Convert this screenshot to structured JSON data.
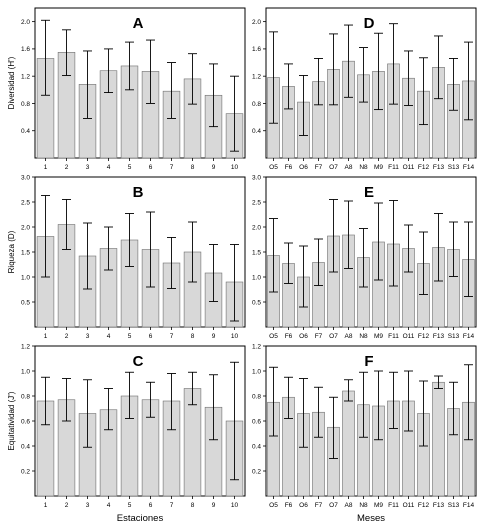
{
  "chart_data": [
    {
      "type": "bar",
      "panel": "A",
      "letter": "A",
      "categories": [
        "1",
        "2",
        "3",
        "4",
        "5",
        "6",
        "7",
        "8",
        "9",
        "10"
      ],
      "values": [
        1.46,
        1.55,
        1.08,
        1.28,
        1.35,
        1.27,
        0.98,
        1.16,
        0.92,
        0.65
      ],
      "err_high": [
        2.02,
        1.88,
        1.57,
        1.6,
        1.7,
        1.73,
        1.4,
        1.53,
        1.38,
        1.2
      ],
      "err_low": [
        0.92,
        1.21,
        0.58,
        0.96,
        1.0,
        0.8,
        0.58,
        0.79,
        0.46,
        0.1
      ],
      "ylabel": "Diversidad (H')",
      "xlabel": "",
      "ylim": [
        0,
        2.2
      ],
      "yticks": [
        "0.4",
        "0.8",
        "1.2",
        "1.6",
        "2.0"
      ],
      "bar_color": "#d8d8d8",
      "grid": false
    },
    {
      "type": "bar",
      "panel": "D",
      "letter": "D",
      "categories": [
        "O5",
        "F6",
        "O6",
        "F7",
        "O7",
        "A8",
        "N8",
        "M9",
        "F11",
        "O11",
        "F12",
        "F13",
        "S13",
        "F14"
      ],
      "values": [
        1.18,
        1.05,
        0.82,
        1.12,
        1.3,
        1.42,
        1.22,
        1.27,
        1.38,
        1.17,
        0.98,
        1.33,
        1.08,
        1.13
      ],
      "err_high": [
        1.85,
        1.38,
        1.21,
        1.46,
        1.82,
        1.95,
        1.62,
        1.83,
        1.97,
        1.57,
        1.47,
        1.79,
        1.46,
        1.7
      ],
      "err_low": [
        0.51,
        0.72,
        0.33,
        0.78,
        0.78,
        0.89,
        0.82,
        0.71,
        0.79,
        0.77,
        0.49,
        0.87,
        0.7,
        0.56
      ],
      "ylabel": "",
      "xlabel": "",
      "ylim": [
        0,
        2.2
      ],
      "yticks": [
        "0.4",
        "0.8",
        "1.2",
        "1.6",
        "2.0"
      ],
      "bar_color": "#d8d8d8",
      "grid": false
    },
    {
      "type": "bar",
      "panel": "B",
      "letter": "B",
      "categories": [
        "1",
        "2",
        "3",
        "4",
        "5",
        "6",
        "7",
        "8",
        "9",
        "10"
      ],
      "values": [
        1.81,
        2.05,
        1.42,
        1.57,
        1.74,
        1.55,
        1.28,
        1.5,
        1.08,
        0.9
      ],
      "err_high": [
        2.63,
        2.55,
        2.08,
        2.0,
        2.27,
        2.3,
        1.79,
        2.1,
        1.65,
        1.65
      ],
      "err_low": [
        1.0,
        1.55,
        0.76,
        1.14,
        1.21,
        0.8,
        0.77,
        0.9,
        0.51,
        0.12
      ],
      "ylabel": "Riqueza (D)",
      "xlabel": "",
      "ylim": [
        0,
        3.0
      ],
      "yticks": [
        "0.5",
        "1.0",
        "1.5",
        "2.0",
        "2.5",
        "3.0"
      ],
      "bar_color": "#d8d8d8",
      "grid": false
    },
    {
      "type": "bar",
      "panel": "E",
      "letter": "E",
      "categories": [
        "O5",
        "F6",
        "O6",
        "F7",
        "O7",
        "A8",
        "N8",
        "M9",
        "F11",
        "O11",
        "F12",
        "F13",
        "S13",
        "F14"
      ],
      "values": [
        1.43,
        1.27,
        1.0,
        1.29,
        1.82,
        1.84,
        1.39,
        1.7,
        1.66,
        1.57,
        1.27,
        1.59,
        1.55,
        1.35
      ],
      "err_high": [
        2.17,
        1.68,
        1.62,
        1.76,
        2.55,
        2.52,
        1.97,
        2.48,
        2.53,
        2.04,
        1.9,
        2.27,
        2.1,
        2.1
      ],
      "err_low": [
        0.7,
        0.87,
        0.4,
        0.83,
        1.1,
        1.17,
        0.8,
        0.94,
        0.82,
        1.1,
        0.65,
        0.92,
        1.01,
        0.61
      ],
      "ylabel": "",
      "xlabel": "",
      "ylim": [
        0,
        3.0
      ],
      "yticks": [
        "0.5",
        "1.0",
        "1.5",
        "2.0",
        "2.5",
        "3.0"
      ],
      "bar_color": "#d8d8d8",
      "grid": false
    },
    {
      "type": "bar",
      "panel": "C",
      "letter": "C",
      "categories": [
        "1",
        "2",
        "3",
        "4",
        "5",
        "6",
        "7",
        "8",
        "9",
        "10"
      ],
      "values": [
        0.76,
        0.77,
        0.66,
        0.69,
        0.8,
        0.77,
        0.76,
        0.86,
        0.71,
        0.6
      ],
      "err_high": [
        0.95,
        0.94,
        0.93,
        0.86,
        0.99,
        0.91,
        0.98,
        0.99,
        0.97,
        1.07
      ],
      "err_low": [
        0.57,
        0.6,
        0.39,
        0.53,
        0.62,
        0.63,
        0.53,
        0.73,
        0.45,
        0.13
      ],
      "ylabel": "Equitatividad (J')",
      "xlabel": "Estaciones",
      "ylim": [
        0,
        1.2
      ],
      "yticks": [
        "0.2",
        "0.4",
        "0.6",
        "0.8",
        "1.0",
        "1.2"
      ],
      "bar_color": "#d8d8d8",
      "grid": false
    },
    {
      "type": "bar",
      "panel": "F",
      "letter": "F",
      "categories": [
        "O5",
        "F6",
        "O6",
        "F7",
        "O7",
        "A8",
        "N8",
        "M9",
        "F11",
        "O11",
        "F12",
        "F13",
        "S13",
        "F14"
      ],
      "values": [
        0.75,
        0.79,
        0.66,
        0.67,
        0.55,
        0.84,
        0.73,
        0.72,
        0.76,
        0.76,
        0.66,
        0.91,
        0.7,
        0.75
      ],
      "err_high": [
        1.03,
        0.95,
        0.94,
        0.87,
        0.79,
        0.93,
        0.99,
        1.0,
        0.99,
        1.0,
        0.92,
        0.96,
        0.91,
        1.05
      ],
      "err_low": [
        0.48,
        0.62,
        0.39,
        0.47,
        0.3,
        0.76,
        0.47,
        0.45,
        0.54,
        0.52,
        0.4,
        0.86,
        0.49,
        0.45
      ],
      "ylabel": "",
      "xlabel": "Meses",
      "ylim": [
        0,
        1.2
      ],
      "yticks": [
        "0.2",
        "0.4",
        "0.6",
        "0.8",
        "1.0",
        "1.2"
      ],
      "bar_color": "#d8d8d8",
      "grid": false
    }
  ]
}
